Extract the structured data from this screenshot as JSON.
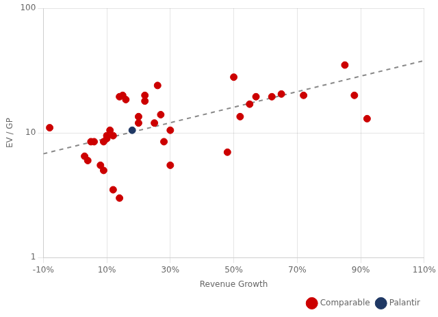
{
  "chart_data": {
    "type": "scatter",
    "xlabel": "Revenue Growth",
    "ylabel": "EV / GP",
    "xlim": [
      -0.1,
      1.1
    ],
    "ylim": [
      1,
      100
    ],
    "xticks": [
      {
        "value": -0.1,
        "label": "-10%"
      },
      {
        "value": 0.1,
        "label": "10%"
      },
      {
        "value": 0.3,
        "label": "30%"
      },
      {
        "value": 0.5,
        "label": "50%"
      },
      {
        "value": 0.7,
        "label": "70%"
      },
      {
        "value": 0.9,
        "label": "90%"
      },
      {
        "value": 1.1,
        "label": "110%"
      }
    ],
    "yticks": [
      1,
      10,
      100
    ],
    "log": "y",
    "grid": true,
    "legend": "lower right",
    "series": [
      {
        "name": "Comparable",
        "color": "#CC0000",
        "x": [
          -0.08,
          0.03,
          0.04,
          0.05,
          0.06,
          0.08,
          0.09,
          0.09,
          0.1,
          0.1,
          0.11,
          0.12,
          0.12,
          0.14,
          0.14,
          0.15,
          0.16,
          0.2,
          0.2,
          0.22,
          0.22,
          0.25,
          0.26,
          0.27,
          0.28,
          0.3,
          0.3,
          0.48,
          0.5,
          0.52,
          0.55,
          0.57,
          0.62,
          0.65,
          0.72,
          0.85,
          0.88,
          0.92
        ],
        "values": [
          11.0,
          6.5,
          6.0,
          8.5,
          8.5,
          5.5,
          5.0,
          8.5,
          9.5,
          9.0,
          10.5,
          3.5,
          9.5,
          3.0,
          19.5,
          20.0,
          18.5,
          12.0,
          13.5,
          20.0,
          18.0,
          12.0,
          24.0,
          14.0,
          8.5,
          10.5,
          5.5,
          7.0,
          28.0,
          13.5,
          17.0,
          19.5,
          19.5,
          20.5,
          20.0,
          35.0,
          20.0,
          13.0
        ]
      },
      {
        "name": "Palantir",
        "color": "#1F3864",
        "x": [
          0.18
        ],
        "values": [
          10.5
        ]
      },
      {
        "type": "line",
        "line_style": "dashed",
        "color": "#888888",
        "x": [
          -0.1,
          1.1
        ],
        "values": [
          6.8,
          38.0
        ]
      }
    ]
  }
}
